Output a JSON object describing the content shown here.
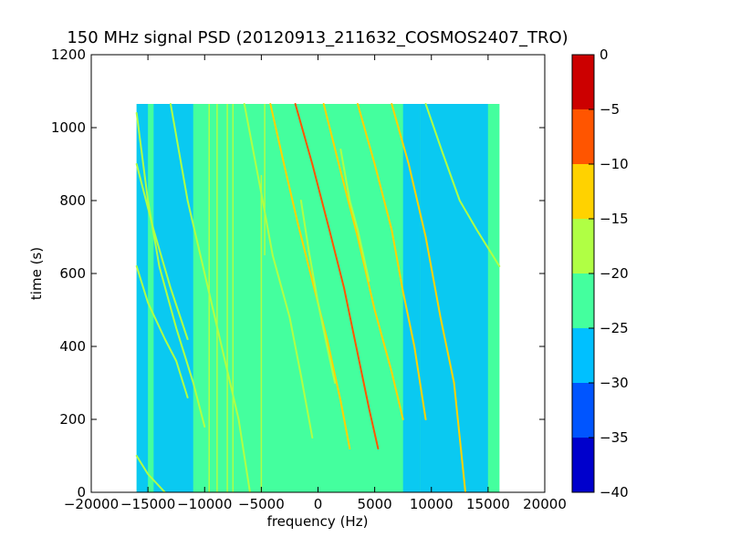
{
  "chart_data": {
    "type": "heatmap",
    "title": "150 MHz signal PSD (20120913_211632_COSMOS2407_TRO)",
    "xlabel": "frequency (Hz)",
    "ylabel": "time (s)",
    "xlim": [
      -20000,
      20000
    ],
    "ylim": [
      0,
      1200
    ],
    "x_ticks": [
      -20000,
      -15000,
      -10000,
      -5000,
      0,
      5000,
      10000,
      15000,
      20000
    ],
    "y_ticks": [
      0,
      200,
      400,
      600,
      800,
      1000,
      1200
    ],
    "data_extent": {
      "x": [
        -16000,
        16000
      ],
      "y": [
        0,
        1065
      ]
    },
    "colorbar": {
      "ticks": [
        0,
        -5,
        -10,
        -15,
        -20,
        -25,
        -30,
        -35,
        -40
      ],
      "levels": [
        {
          "range": [
            -40,
            -35
          ],
          "color": "#0000cc"
        },
        {
          "range": [
            -35,
            -30
          ],
          "color": "#0055ff"
        },
        {
          "range": [
            -30,
            -25
          ],
          "color": "#00c0ff"
        },
        {
          "range": [
            -25,
            -20
          ],
          "color": "#44ff9e"
        },
        {
          "range": [
            -20,
            -15
          ],
          "color": "#b0ff44"
        },
        {
          "range": [
            -15,
            -10
          ],
          "color": "#ffd200"
        },
        {
          "range": [
            -10,
            -5
          ],
          "color": "#ff5500"
        },
        {
          "range": [
            -5,
            0
          ],
          "color": "#cc0000"
        }
      ]
    },
    "noise_regions": [
      {
        "x": [
          -16000,
          -15000
        ],
        "level": -25
      },
      {
        "x": [
          -14500,
          -11000
        ],
        "level": -27
      },
      {
        "x": [
          -11000,
          7500
        ],
        "level": -23
      },
      {
        "x": [
          7500,
          9000
        ],
        "level": -26
      },
      {
        "x": [
          9000,
          15000
        ],
        "level": -29
      },
      {
        "x": [
          15000,
          16000
        ],
        "level": -23
      }
    ],
    "vertical_lines": [
      {
        "x": -9600,
        "t": [
          0,
          1065
        ],
        "level": -18
      },
      {
        "x": -8900,
        "t": [
          0,
          1065
        ],
        "level": -18
      },
      {
        "x": -8000,
        "t": [
          0,
          1065
        ],
        "level": -17
      },
      {
        "x": -7500,
        "t": [
          0,
          1065
        ],
        "level": -18
      },
      {
        "x": -5000,
        "t": [
          0,
          870
        ],
        "level": -17
      },
      {
        "x": -4700,
        "t": [
          650,
          1065
        ],
        "level": -18
      }
    ],
    "traces": [
      {
        "points": [
          [
            -16000,
            1040
          ],
          [
            -15000,
            800
          ],
          [
            -14000,
            620
          ],
          [
            -12500,
            450
          ],
          [
            -11000,
            300
          ],
          [
            -10000,
            180
          ]
        ],
        "level": -18
      },
      {
        "points": [
          [
            -16000,
            620
          ],
          [
            -15000,
            520
          ],
          [
            -13500,
            420
          ],
          [
            -12500,
            360
          ],
          [
            -11500,
            260
          ]
        ],
        "level": -17
      },
      {
        "points": [
          [
            -16000,
            100
          ],
          [
            -15000,
            50
          ],
          [
            -13500,
            0
          ]
        ],
        "level": -18
      },
      {
        "points": [
          [
            -13000,
            1065
          ],
          [
            -11500,
            800
          ],
          [
            -10000,
            600
          ],
          [
            -8500,
            400
          ],
          [
            -7000,
            200
          ],
          [
            -6000,
            0
          ]
        ],
        "level": -18
      },
      {
        "points": [
          [
            -6500,
            1065
          ],
          [
            -5000,
            820
          ],
          [
            -4000,
            650
          ],
          [
            -2500,
            480
          ],
          [
            -1500,
            320
          ],
          [
            -500,
            150
          ]
        ],
        "level": -18
      },
      {
        "points": [
          [
            -4200,
            1065
          ],
          [
            -3000,
            900
          ],
          [
            -1800,
            740
          ],
          [
            -500,
            580
          ],
          [
            800,
            420
          ],
          [
            2000,
            250
          ],
          [
            2800,
            120
          ]
        ],
        "level": -12
      },
      {
        "points": [
          [
            -2000,
            1065
          ],
          [
            -500,
            900
          ],
          [
            1000,
            720
          ],
          [
            2300,
            560
          ],
          [
            3500,
            380
          ],
          [
            4500,
            230
          ],
          [
            5300,
            120
          ]
        ],
        "level": -8
      },
      {
        "points": [
          [
            500,
            1065
          ],
          [
            2000,
            880
          ],
          [
            3500,
            700
          ],
          [
            5000,
            500
          ],
          [
            6500,
            330
          ],
          [
            7500,
            200
          ]
        ],
        "level": -10
      },
      {
        "points": [
          [
            3500,
            1065
          ],
          [
            5000,
            900
          ],
          [
            6500,
            720
          ],
          [
            7500,
            550
          ],
          [
            8500,
            400
          ],
          [
            9500,
            200
          ]
        ],
        "level": -12
      },
      {
        "points": [
          [
            6500,
            1065
          ],
          [
            8000,
            900
          ],
          [
            9500,
            700
          ],
          [
            10800,
            480
          ],
          [
            12000,
            300
          ],
          [
            13000,
            0
          ]
        ],
        "level": -14
      },
      {
        "points": [
          [
            9500,
            1065
          ],
          [
            11000,
            930
          ],
          [
            12500,
            800
          ],
          [
            14000,
            720
          ],
          [
            16000,
            620
          ]
        ],
        "level": -16
      },
      {
        "points": [
          [
            -1500,
            800
          ],
          [
            -800,
            660
          ],
          [
            0,
            520
          ],
          [
            800,
            400
          ],
          [
            1500,
            300
          ]
        ],
        "level": -17
      },
      {
        "points": [
          [
            2000,
            940
          ],
          [
            2800,
            800
          ],
          [
            3500,
            720
          ],
          [
            4500,
            580
          ]
        ],
        "level": -17
      },
      {
        "points": [
          [
            -16000,
            900
          ],
          [
            -14500,
            720
          ],
          [
            -13000,
            560
          ],
          [
            -11500,
            420
          ]
        ],
        "level": -19
      }
    ]
  }
}
